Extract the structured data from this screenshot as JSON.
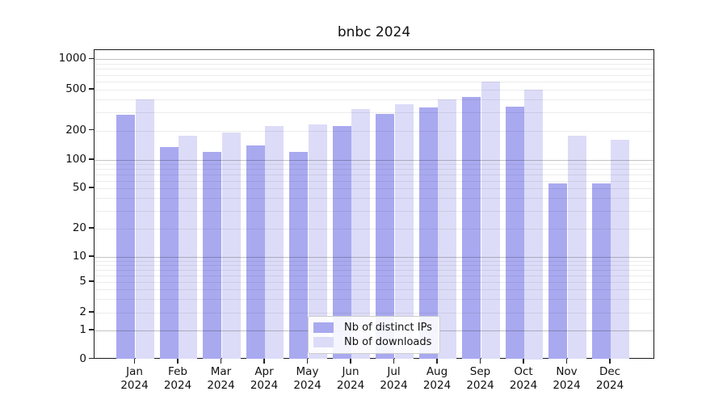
{
  "title": "bnbc 2024",
  "chart_data": {
    "type": "bar",
    "title": "bnbc 2024",
    "categories": [
      "Jan",
      "Feb",
      "Mar",
      "Apr",
      "May",
      "Jun",
      "Jul",
      "Aug",
      "Sep",
      "Oct",
      "Nov",
      "Dec"
    ],
    "category_year": "2024",
    "series": [
      {
        "name": "Nb of distinct IPs",
        "color": "#a9a9f0",
        "values": [
          285,
          136,
          120,
          141,
          120,
          220,
          290,
          335,
          425,
          340,
          56,
          56
        ]
      },
      {
        "name": "Nb of downloads",
        "color": "#dcdcf8",
        "values": [
          400,
          177,
          190,
          220,
          228,
          325,
          360,
          400,
          600,
          500,
          177,
          162
        ]
      }
    ],
    "y_axis": {
      "scale": "symlog",
      "ticks": [
        0,
        1,
        2,
        5,
        10,
        20,
        50,
        100,
        200,
        500,
        1000
      ],
      "major_gridlines": [
        1,
        10,
        100,
        1000
      ],
      "grid": "on",
      "ylim_top_approx": 1250
    },
    "legend": {
      "position": "lower center"
    }
  },
  "colors": {
    "major_grid": "#c3c3c3",
    "minor_grid": "#ececec",
    "spine": "#1a1a1a"
  }
}
